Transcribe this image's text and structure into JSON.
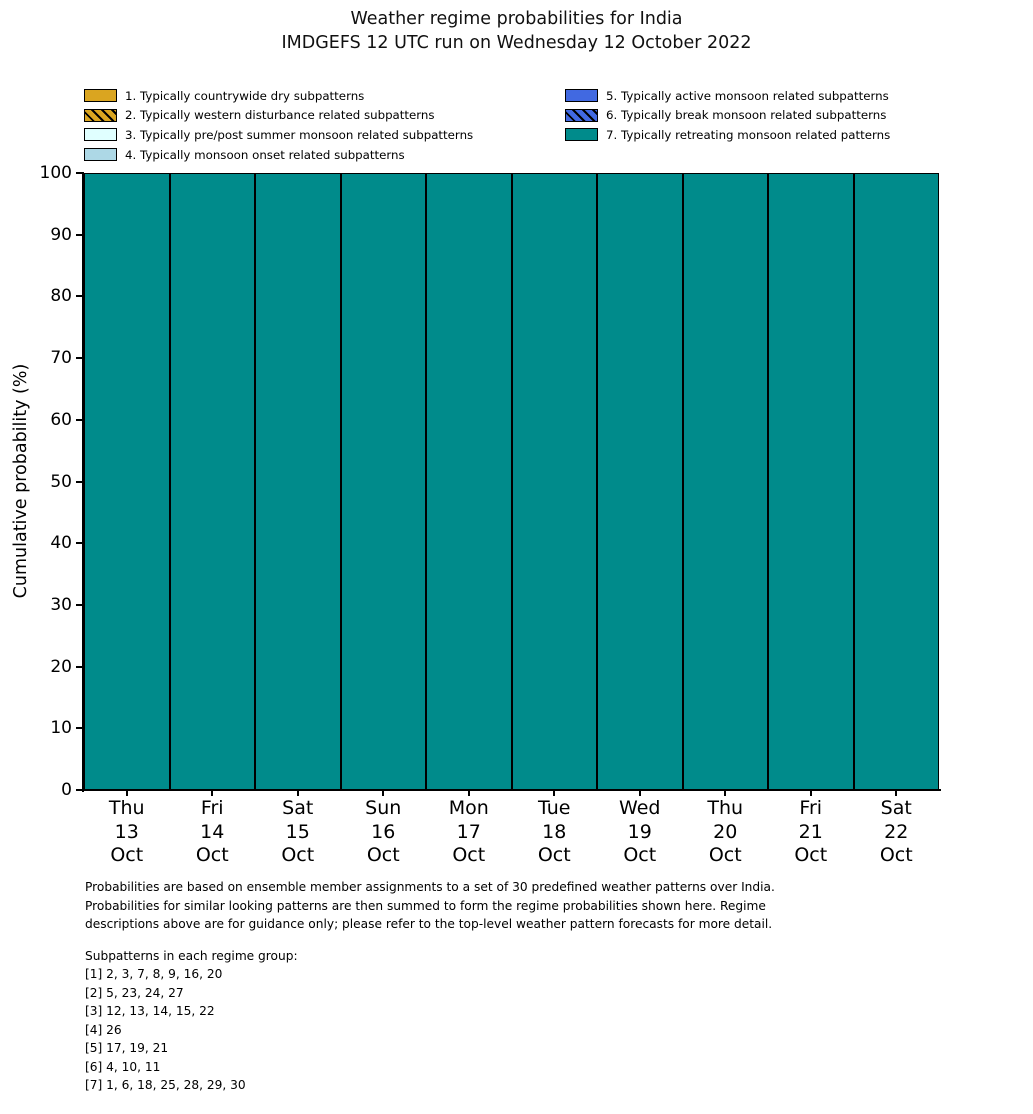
{
  "title": {
    "line1": "Weather regime probabilities for India",
    "line2": "IMDGEFS 12 UTC run on Wednesday 12 October 2022"
  },
  "colors": {
    "regime1": "#DAA520",
    "regime2": "#DAA520",
    "regime3": "#E0FFFF",
    "regime4": "#ADD8E6",
    "regime5": "#4169E1",
    "regime6": "#4169E1",
    "regime7": "#008B8B",
    "bar_edge": "#000000"
  },
  "legend": {
    "columns": [
      [
        {
          "label": "1. Typically countrywide dry subpatterns",
          "color": "#DAA520",
          "hatched": false
        },
        {
          "label": "2. Typically western disturbance related subpatterns",
          "color": "#DAA520",
          "hatched": true
        },
        {
          "label": "3. Typically pre/post summer monsoon related subpatterns",
          "color": "#E0FFFF",
          "hatched": false
        },
        {
          "label": "4. Typically monsoon onset related subpatterns",
          "color": "#ADD8E6",
          "hatched": false
        }
      ],
      [
        {
          "label": "5. Typically active monsoon related subpatterns",
          "color": "#4169E1",
          "hatched": false
        },
        {
          "label": "6. Typically break monsoon related subpatterns",
          "color": "#4169E1",
          "hatched": true
        },
        {
          "label": "7. Typically retreating monsoon related patterns",
          "color": "#008B8B",
          "hatched": false
        }
      ]
    ]
  },
  "chart_data": {
    "type": "bar",
    "stacked": true,
    "title": "Weather regime probabilities for India — IMDGEFS 12 UTC run on Wednesday 12 October 2022",
    "xlabel": "",
    "ylabel": "Cumulative probability (%)",
    "ylim": [
      0,
      100
    ],
    "yticks": [
      0,
      10,
      20,
      30,
      40,
      50,
      60,
      70,
      80,
      90,
      100
    ],
    "grid": false,
    "legend_position": "top, two columns, no frame",
    "categories": [
      {
        "day": "Thu",
        "date": "13",
        "month": "Oct"
      },
      {
        "day": "Fri",
        "date": "14",
        "month": "Oct"
      },
      {
        "day": "Sat",
        "date": "15",
        "month": "Oct"
      },
      {
        "day": "Sun",
        "date": "16",
        "month": "Oct"
      },
      {
        "day": "Mon",
        "date": "17",
        "month": "Oct"
      },
      {
        "day": "Tue",
        "date": "18",
        "month": "Oct"
      },
      {
        "day": "Wed",
        "date": "19",
        "month": "Oct"
      },
      {
        "day": "Thu",
        "date": "20",
        "month": "Oct"
      },
      {
        "day": "Fri",
        "date": "21",
        "month": "Oct"
      },
      {
        "day": "Sat",
        "date": "22",
        "month": "Oct"
      }
    ],
    "series": [
      {
        "name": "1. Typically countrywide dry subpatterns",
        "color": "#DAA520",
        "hatched": false,
        "values": [
          0,
          0,
          0,
          0,
          0,
          0,
          0,
          0,
          0,
          0
        ]
      },
      {
        "name": "2. Typically western disturbance related subpatterns",
        "color": "#DAA520",
        "hatched": true,
        "values": [
          0,
          0,
          0,
          0,
          0,
          0,
          0,
          0,
          0,
          0
        ]
      },
      {
        "name": "3. Typically pre/post summer monsoon related subpatterns",
        "color": "#E0FFFF",
        "hatched": false,
        "values": [
          0,
          0,
          0,
          0,
          0,
          0,
          0,
          0,
          0,
          0
        ]
      },
      {
        "name": "4. Typically monsoon onset related subpatterns",
        "color": "#ADD8E6",
        "hatched": false,
        "values": [
          0,
          0,
          0,
          0,
          0,
          0,
          0,
          0,
          0,
          0
        ]
      },
      {
        "name": "5. Typically active monsoon related subpatterns",
        "color": "#4169E1",
        "hatched": false,
        "values": [
          0,
          0,
          0,
          0,
          0,
          0,
          0,
          0,
          0,
          0
        ]
      },
      {
        "name": "6. Typically break monsoon related subpatterns",
        "color": "#4169E1",
        "hatched": true,
        "values": [
          0,
          0,
          0,
          0,
          0,
          0,
          0,
          0,
          0,
          0
        ]
      },
      {
        "name": "7. Typically retreating monsoon related patterns",
        "color": "#008B8B",
        "hatched": false,
        "values": [
          100,
          100,
          100,
          100,
          100,
          100,
          100,
          100,
          100,
          100
        ]
      }
    ]
  },
  "footer": {
    "paragraph_lines": [
      "Probabilities are based on ensemble member assignments to a set of 30 predefined weather patterns over India.",
      "Probabilities for similar looking patterns are then summed to form the regime probabilities shown here. Regime",
      "descriptions above are for guidance only; please refer to the top-level weather pattern forecasts for more detail."
    ],
    "subpatterns_title": "Subpatterns in each regime group:",
    "subpatterns": [
      "[1] 2, 3, 7, 8, 9, 16, 20",
      "[2] 5, 23, 24, 27",
      "[3] 12, 13, 14, 15, 22",
      "[4] 26",
      "[5] 17, 19, 21",
      "[6] 4, 10, 11",
      "[7] 1, 6, 18, 25, 28, 29, 30"
    ]
  }
}
